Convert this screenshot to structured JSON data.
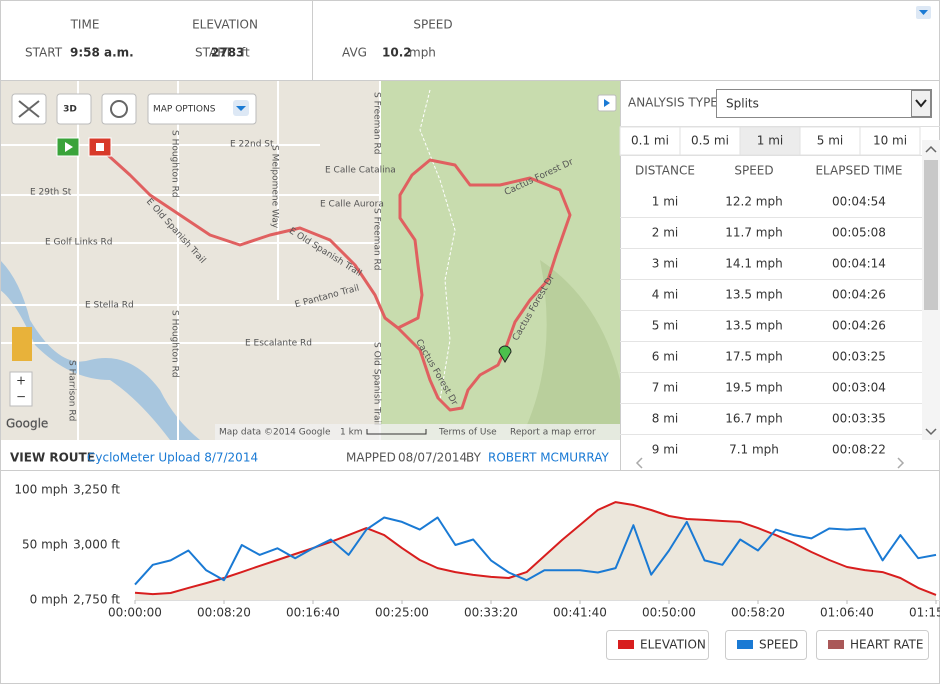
{
  "header": {
    "stats": [
      {
        "label": "TIME",
        "sub": "START",
        "value": "9:58 a.m."
      },
      {
        "label": "ELEVATION",
        "sub": "START",
        "value": "2783",
        "unit": "ft"
      },
      {
        "label": "SPEED",
        "sub": "AVG",
        "value": "10.2",
        "unit": "mph"
      }
    ]
  },
  "map": {
    "controls": {
      "three_d": "3D",
      "options": "MAP OPTIONS"
    },
    "labels": [
      "E 22nd St",
      "E Calle Catalina",
      "E Calle Aurora",
      "E 29th St",
      "E Old Spanish Trail",
      "E Old Spanish Trail",
      "E Golf Links Rd",
      "E Stella Rd",
      "E Pantano Trail",
      "E Escalante Rd",
      "S Houghton Rd",
      "S Houghton Rd",
      "S Melpomene Way",
      "S Freeman Rd",
      "S Freeman Rd",
      "S Old Spanish Trail",
      "Cactus Forest Dr",
      "Cactus Forest Dr",
      "Cactus Forest Dr",
      "S Harrison Rd"
    ],
    "attribution": "Map data ©2014 Google",
    "scale": "1 km",
    "terms": "Terms of Use",
    "report": "Report a map error",
    "logo": "Google"
  },
  "analysis": {
    "type_label": "ANALYSIS TYPE:",
    "type_value": "Splits",
    "tabs": [
      "0.1 mi",
      "0.5 mi",
      "1 mi",
      "5 mi",
      "10 mi"
    ],
    "selected_tab": 2,
    "columns": [
      "DISTANCE",
      "SPEED",
      "ELAPSED TIME"
    ],
    "rows": [
      [
        "1 mi",
        "12.2 mph",
        "00:04:54"
      ],
      [
        "2 mi",
        "11.7 mph",
        "00:05:08"
      ],
      [
        "3 mi",
        "14.1 mph",
        "00:04:14"
      ],
      [
        "4 mi",
        "13.5 mph",
        "00:04:26"
      ],
      [
        "5 mi",
        "13.5 mph",
        "00:04:26"
      ],
      [
        "6 mi",
        "17.5 mph",
        "00:03:25"
      ],
      [
        "7 mi",
        "19.5 mph",
        "00:03:04"
      ],
      [
        "8 mi",
        "16.7 mph",
        "00:03:35"
      ],
      [
        "9 mi",
        "7.1 mph",
        "00:08:22"
      ]
    ]
  },
  "route": {
    "view_label": "VIEW ROUTE",
    "name": "CycloMeter Upload 8/7/2014",
    "mapped_label": "MAPPED",
    "mapped_date": "08/07/2014",
    "by_label": "BY",
    "author": "ROBERT MCMURRAY"
  },
  "chart_data": {
    "type": "line",
    "x": [
      0,
      100,
      200,
      300,
      400,
      500,
      600,
      700,
      800,
      900,
      1000,
      1100,
      1200,
      1300,
      1400,
      1500,
      1600,
      1700,
      1800,
      1900,
      2000,
      2100,
      2200,
      2300,
      2400,
      2500,
      2600,
      2700,
      2800,
      2900,
      3000,
      3100,
      3200,
      3300,
      3400,
      3500,
      3600,
      3700,
      3800,
      3900,
      4000,
      4100,
      4200,
      4300,
      4400,
      4500
    ],
    "xlim": [
      0,
      4500
    ],
    "xticks": [
      {
        "value": 0,
        "label": "00:00:00"
      },
      {
        "value": 500,
        "label": "00:08:20"
      },
      {
        "value": 1000,
        "label": "00:16:40"
      },
      {
        "value": 1500,
        "label": "00:25:00"
      },
      {
        "value": 2000,
        "label": "00:33:20"
      },
      {
        "value": 2500,
        "label": "00:41:40"
      },
      {
        "value": 3000,
        "label": "00:50:00"
      },
      {
        "value": 3500,
        "label": "00:58:20"
      },
      {
        "value": 4000,
        "label": "01:06:40"
      },
      {
        "value": 4500,
        "label": "01:15:00"
      }
    ],
    "ylim": [
      0,
      100
    ],
    "yticks": [
      {
        "value": 0,
        "label": "0 mph"
      },
      {
        "value": 50,
        "label": "50 mph"
      },
      {
        "value": 100,
        "label": "100 mph"
      }
    ],
    "y2lim": [
      2750,
      3250
    ],
    "y2ticks": [
      {
        "value": 2750,
        "label": "2,750 ft"
      },
      {
        "value": 3000,
        "label": "3,000 ft"
      },
      {
        "value": 3250,
        "label": "3,250 ft"
      }
    ],
    "series": [
      {
        "name": "ELEVATION",
        "color": "#d81e1e",
        "fill": "#ece7dc",
        "axis": "y2",
        "values": [
          2783,
          2777,
          2782,
          2805,
          2827,
          2850,
          2877,
          2905,
          2932,
          2959,
          2986,
          3014,
          3045,
          3077,
          3045,
          2986,
          2932,
          2895,
          2877,
          2864,
          2855,
          2850,
          2877,
          2950,
          3023,
          3091,
          3159,
          3195,
          3182,
          3159,
          3132,
          3118,
          3114,
          3109,
          3105,
          3077,
          3045,
          3009,
          2968,
          2932,
          2900,
          2886,
          2877,
          2850,
          2805,
          2773
        ]
      },
      {
        "name": "SPEED",
        "color": "#1a7ad4",
        "values": [
          14,
          32,
          36,
          45,
          27,
          18,
          50,
          41,
          47,
          38,
          47,
          55,
          41,
          64,
          75,
          71,
          64,
          75,
          50,
          55,
          36,
          25,
          18,
          27,
          27,
          27,
          25,
          29,
          68,
          23,
          45,
          71,
          36,
          32,
          55,
          45,
          64,
          59,
          56,
          65,
          64,
          65,
          36,
          59,
          38,
          41
        ]
      }
    ],
    "inactive_series": [
      {
        "name": "HEART RATE",
        "color": "#9b3b3b"
      }
    ]
  }
}
